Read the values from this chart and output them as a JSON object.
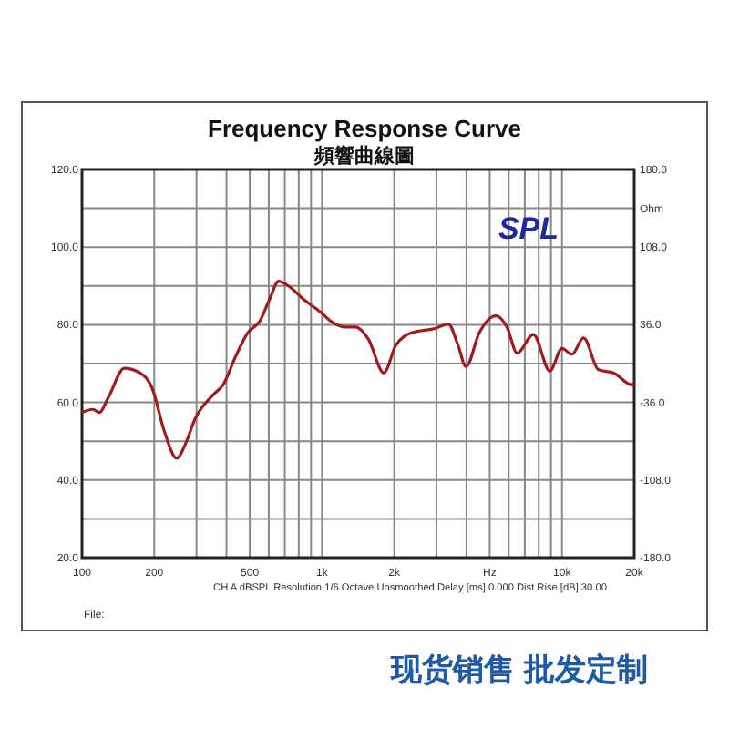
{
  "chart_data": {
    "type": "line",
    "title": "Frequency Response Curve",
    "subtitle": "頻響曲線圖",
    "y2label": "Ohm",
    "annotations": [
      "SPL",
      "CH A   dBSPL   Resolution 1/6 Octave   Unsmoothed   Delay [ms] 0.000   Dist Rise [dB] 30.00",
      "File:",
      "现货销售  批发定制"
    ],
    "log": "x",
    "grid": true,
    "marker": "none",
    "line_style": "solid",
    "xlim": [
      100,
      20000
    ],
    "xticks": [
      100,
      200,
      {
        "value": 300,
        "label": null
      },
      {
        "value": 400,
        "label": null
      },
      500,
      {
        "value": 600,
        "label": null
      },
      {
        "value": 700,
        "label": null
      },
      {
        "value": 800,
        "label": null
      },
      {
        "value": 900,
        "label": null
      },
      {
        "value": 1000,
        "label": "1k"
      },
      {
        "value": 2000,
        "label": "2k"
      },
      {
        "value": 3000,
        "label": null
      },
      {
        "value": 4000,
        "label": null
      },
      {
        "value": 5000,
        "label": "Hz"
      },
      {
        "value": 6000,
        "label": null
      },
      {
        "value": 7000,
        "label": null
      },
      {
        "value": 8000,
        "label": null
      },
      {
        "value": 9000,
        "label": null
      },
      {
        "value": 10000,
        "label": "10k"
      },
      {
        "value": 20000,
        "label": "20k"
      }
    ],
    "ylim": [
      20,
      120
    ],
    "yticks": [
      {
        "value": 20,
        "label": "20.0"
      },
      {
        "value": 30,
        "label": null
      },
      {
        "value": 40,
        "label": "40.0"
      },
      {
        "value": 50,
        "label": null
      },
      {
        "value": 60,
        "label": "60.0"
      },
      {
        "value": 70,
        "label": null
      },
      {
        "value": 80,
        "label": "80.0"
      },
      {
        "value": 90,
        "label": null
      },
      {
        "value": 100,
        "label": "100.0"
      },
      {
        "value": 110,
        "label": null
      },
      {
        "value": 120,
        "label": "120.0"
      }
    ],
    "y2lim": [
      -180,
      180
    ],
    "y2ticks": [
      {
        "value": -180,
        "label": "-180.0"
      },
      {
        "value": -108,
        "label": "-108.0"
      },
      {
        "value": -36,
        "label": "-36.0"
      },
      {
        "value": 36,
        "label": "36.0"
      },
      {
        "value": 108,
        "label": "108.0"
      },
      {
        "value": 180,
        "label": "180.0"
      }
    ],
    "series": [
      {
        "color": "#a01c1c",
        "x": [
          100,
          111,
          118,
          129,
          150,
          174,
          196,
          220,
          248,
          271,
          296,
          354,
          387,
          435,
          490,
          552,
          604,
          660,
          721,
          840,
          980,
          1100,
          1250,
          1380,
          1560,
          1810,
          2030,
          2360,
          2980,
          3360,
          3690,
          3980,
          4520,
          5300,
          5900,
          6500,
          7600,
          8900,
          10000,
          11000,
          12300,
          14200,
          16400,
          19600,
          20000
        ],
        "values": [
          57.4,
          58.2,
          57.4,
          61.4,
          68.8,
          67.6,
          63.7,
          52.7,
          45.6,
          49.6,
          55.8,
          62.1,
          64.5,
          71.6,
          77.9,
          81.0,
          86.5,
          91.2,
          90.1,
          86.5,
          83.4,
          80.7,
          79.4,
          79.4,
          76.3,
          67.6,
          74.7,
          77.9,
          79.1,
          80.2,
          74.7,
          69.2,
          77.9,
          82.3,
          79.4,
          72.7,
          77.5,
          68.1,
          73.9,
          72.4,
          76.6,
          68.4,
          67.6,
          64.5,
          65.1
        ]
      }
    ]
  }
}
